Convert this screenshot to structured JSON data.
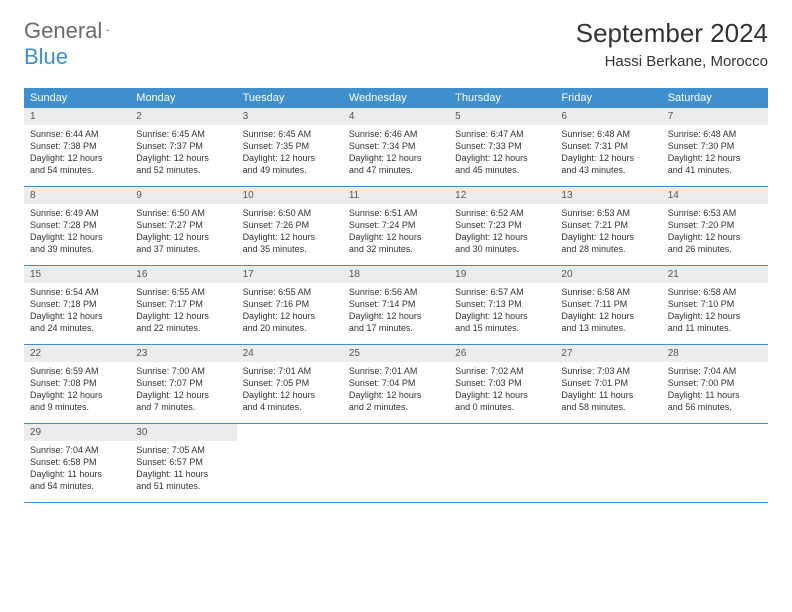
{
  "logo": {
    "general": "General",
    "blue": "Blue"
  },
  "title": "September 2024",
  "location": "Hassi Berkane, Morocco",
  "colors": {
    "header_bg": "#3f8fcf",
    "header_text": "#ffffff",
    "daynum_bg": "#ececec",
    "body_text": "#333333",
    "page_bg": "#ffffff",
    "logo_gray": "#6b6b6b",
    "logo_blue": "#3f8fcf"
  },
  "day_headers": [
    "Sunday",
    "Monday",
    "Tuesday",
    "Wednesday",
    "Thursday",
    "Friday",
    "Saturday"
  ],
  "weeks": [
    [
      {
        "n": "1",
        "sr": "6:44 AM",
        "ss": "7:38 PM",
        "dh": "12",
        "dm": "54"
      },
      {
        "n": "2",
        "sr": "6:45 AM",
        "ss": "7:37 PM",
        "dh": "12",
        "dm": "52"
      },
      {
        "n": "3",
        "sr": "6:45 AM",
        "ss": "7:35 PM",
        "dh": "12",
        "dm": "49"
      },
      {
        "n": "4",
        "sr": "6:46 AM",
        "ss": "7:34 PM",
        "dh": "12",
        "dm": "47"
      },
      {
        "n": "5",
        "sr": "6:47 AM",
        "ss": "7:33 PM",
        "dh": "12",
        "dm": "45"
      },
      {
        "n": "6",
        "sr": "6:48 AM",
        "ss": "7:31 PM",
        "dh": "12",
        "dm": "43"
      },
      {
        "n": "7",
        "sr": "6:48 AM",
        "ss": "7:30 PM",
        "dh": "12",
        "dm": "41"
      }
    ],
    [
      {
        "n": "8",
        "sr": "6:49 AM",
        "ss": "7:28 PM",
        "dh": "12",
        "dm": "39"
      },
      {
        "n": "9",
        "sr": "6:50 AM",
        "ss": "7:27 PM",
        "dh": "12",
        "dm": "37"
      },
      {
        "n": "10",
        "sr": "6:50 AM",
        "ss": "7:26 PM",
        "dh": "12",
        "dm": "35"
      },
      {
        "n": "11",
        "sr": "6:51 AM",
        "ss": "7:24 PM",
        "dh": "12",
        "dm": "32"
      },
      {
        "n": "12",
        "sr": "6:52 AM",
        "ss": "7:23 PM",
        "dh": "12",
        "dm": "30"
      },
      {
        "n": "13",
        "sr": "6:53 AM",
        "ss": "7:21 PM",
        "dh": "12",
        "dm": "28"
      },
      {
        "n": "14",
        "sr": "6:53 AM",
        "ss": "7:20 PM",
        "dh": "12",
        "dm": "26"
      }
    ],
    [
      {
        "n": "15",
        "sr": "6:54 AM",
        "ss": "7:18 PM",
        "dh": "12",
        "dm": "24"
      },
      {
        "n": "16",
        "sr": "6:55 AM",
        "ss": "7:17 PM",
        "dh": "12",
        "dm": "22"
      },
      {
        "n": "17",
        "sr": "6:55 AM",
        "ss": "7:16 PM",
        "dh": "12",
        "dm": "20"
      },
      {
        "n": "18",
        "sr": "6:56 AM",
        "ss": "7:14 PM",
        "dh": "12",
        "dm": "17"
      },
      {
        "n": "19",
        "sr": "6:57 AM",
        "ss": "7:13 PM",
        "dh": "12",
        "dm": "15"
      },
      {
        "n": "20",
        "sr": "6:58 AM",
        "ss": "7:11 PM",
        "dh": "12",
        "dm": "13"
      },
      {
        "n": "21",
        "sr": "6:58 AM",
        "ss": "7:10 PM",
        "dh": "12",
        "dm": "11"
      }
    ],
    [
      {
        "n": "22",
        "sr": "6:59 AM",
        "ss": "7:08 PM",
        "dh": "12",
        "dm": "9"
      },
      {
        "n": "23",
        "sr": "7:00 AM",
        "ss": "7:07 PM",
        "dh": "12",
        "dm": "7"
      },
      {
        "n": "24",
        "sr": "7:01 AM",
        "ss": "7:05 PM",
        "dh": "12",
        "dm": "4"
      },
      {
        "n": "25",
        "sr": "7:01 AM",
        "ss": "7:04 PM",
        "dh": "12",
        "dm": "2"
      },
      {
        "n": "26",
        "sr": "7:02 AM",
        "ss": "7:03 PM",
        "dh": "12",
        "dm": "0"
      },
      {
        "n": "27",
        "sr": "7:03 AM",
        "ss": "7:01 PM",
        "dh": "11",
        "dm": "58"
      },
      {
        "n": "28",
        "sr": "7:04 AM",
        "ss": "7:00 PM",
        "dh": "11",
        "dm": "56"
      }
    ],
    [
      {
        "n": "29",
        "sr": "7:04 AM",
        "ss": "6:58 PM",
        "dh": "11",
        "dm": "54"
      },
      {
        "n": "30",
        "sr": "7:05 AM",
        "ss": "6:57 PM",
        "dh": "11",
        "dm": "51"
      },
      null,
      null,
      null,
      null,
      null
    ]
  ],
  "labels": {
    "sunrise": "Sunrise:",
    "sunset": "Sunset:",
    "daylight": "Daylight:",
    "hours": "hours",
    "and": "and",
    "minutes": "minutes."
  }
}
